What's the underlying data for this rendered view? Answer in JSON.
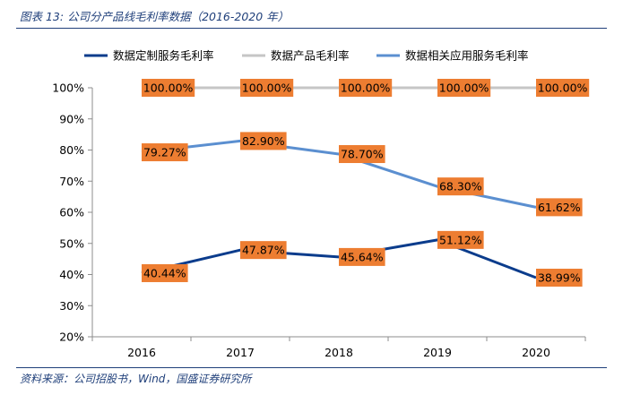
{
  "figure_title": "图表 13:  公司分产品线毛利率数据（2016-2020 年）",
  "source_note": "资料来源：公司招股书，Wind，国盛证券研究所",
  "colors": {
    "series_dark_blue": "#0b3c8c",
    "series_gray": "#c6c6c6",
    "series_light_blue": "#5b8fd0",
    "label_box": "#ed7d31",
    "axis": "#8c8c8c",
    "title_blue": "#1f3f7a"
  },
  "chart_data": {
    "type": "line",
    "categories": [
      "2016",
      "2017",
      "2018",
      "2019",
      "2020"
    ],
    "ylim": [
      20,
      100
    ],
    "yticks": [
      "20%",
      "30%",
      "40%",
      "50%",
      "60%",
      "70%",
      "80%",
      "90%",
      "100%"
    ],
    "grid": false,
    "legend_position": "top",
    "series": [
      {
        "name": "数据定制服务毛利率",
        "values": [
          40.44,
          47.87,
          45.64,
          51.12,
          38.99
        ],
        "labels": [
          "40.44%",
          "47.87%",
          "45.64%",
          "51.12%",
          "38.99%"
        ]
      },
      {
        "name": "数据产品毛利率",
        "values": [
          100.0,
          100.0,
          100.0,
          100.0,
          100.0
        ],
        "labels": [
          "100.00%",
          "100.00%",
          "100.00%",
          "100.00%",
          "100.00%"
        ]
      },
      {
        "name": "数据相关应用服务毛利率",
        "values": [
          79.27,
          82.9,
          78.7,
          68.3,
          61.62
        ],
        "labels": [
          "79.27%",
          "82.90%",
          "78.70%",
          "68.30%",
          "61.62%"
        ]
      }
    ]
  }
}
